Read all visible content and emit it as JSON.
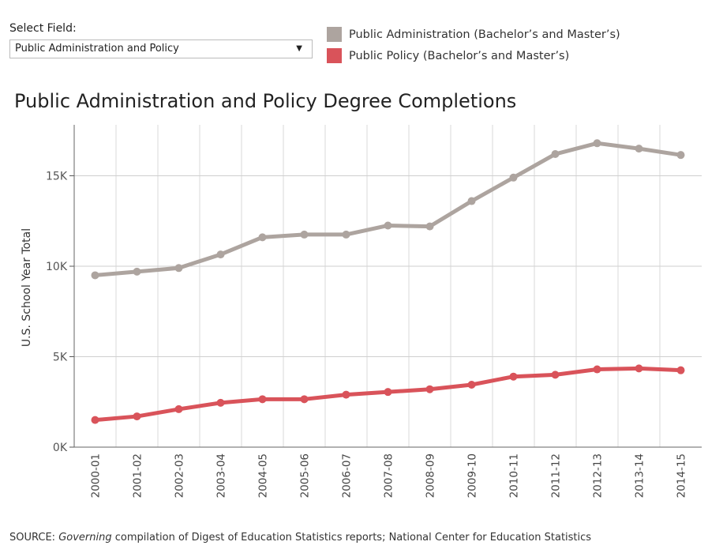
{
  "filter": {
    "label": "Select Field:",
    "selected": "Public Administration and Policy",
    "arrow_icon": "▼"
  },
  "legend": [
    {
      "label": "Public Administration (Bachelor’s and Master’s)",
      "color": "#ada49f"
    },
    {
      "label": "Public Policy (Bachelor’s and Master’s)",
      "color": "#d9535a"
    }
  ],
  "source": {
    "prefix": "SOURCE: ",
    "italic": "Governing",
    "rest": " compilation of Digest of Education Statistics reports; National Center for Education Statistics"
  },
  "chart_data": {
    "type": "line",
    "title": "Public Administration and Policy Degree Completions",
    "xlabel": "",
    "ylabel": "U.S. School Year Total",
    "ylim": [
      0,
      18000
    ],
    "yticks": [
      0,
      5000,
      10000,
      15000
    ],
    "ytick_labels": [
      "0K",
      "5K",
      "10K",
      "15K"
    ],
    "grid": true,
    "legend_position": "top-right",
    "categories": [
      "2000-01",
      "2001-02",
      "2002-03",
      "2003-04",
      "2004-05",
      "2005-06",
      "2006-07",
      "2007-08",
      "2008-09",
      "2009-10",
      "2010-11",
      "2011-12",
      "2012-13",
      "2013-14",
      "2014-15"
    ],
    "series": [
      {
        "name": "Public Administration (Bachelor’s and Master’s)",
        "color": "#ada49f",
        "values": [
          9500,
          9700,
          9900,
          10650,
          11600,
          11750,
          11750,
          12250,
          12200,
          13600,
          14900,
          16200,
          16800,
          16500,
          16150
        ]
      },
      {
        "name": "Public Policy (Bachelor’s and Master’s)",
        "color": "#d9535a",
        "values": [
          1500,
          1700,
          2100,
          2450,
          2650,
          2650,
          2900,
          3050,
          3200,
          3450,
          3900,
          4000,
          4300,
          4350,
          4250
        ]
      }
    ]
  }
}
